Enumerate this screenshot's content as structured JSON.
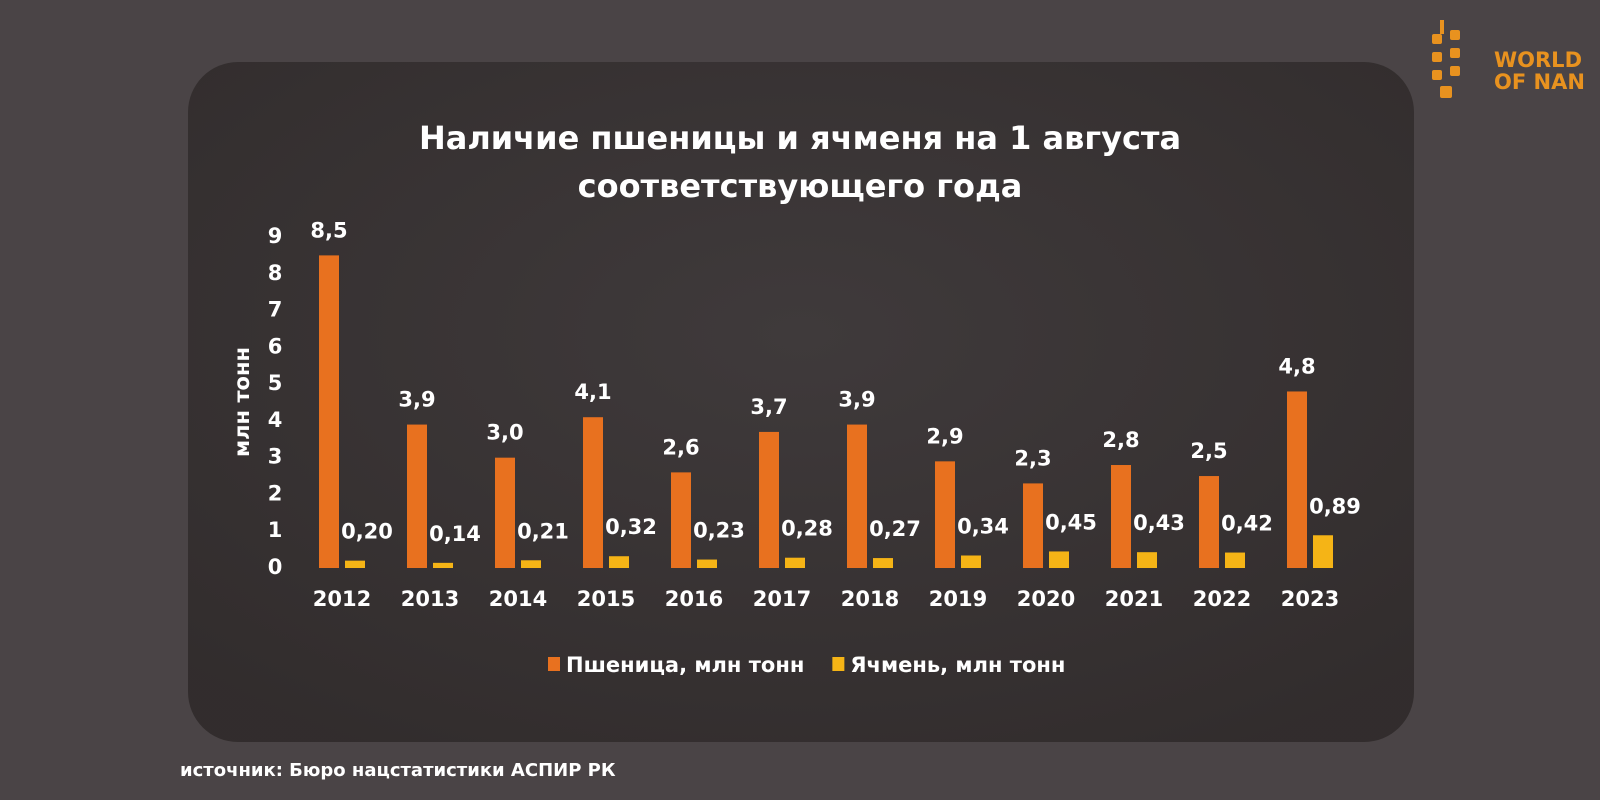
{
  "logo": {
    "lines": [
      "WORLD",
      "OF NAN"
    ]
  },
  "source": "источник: Бюро нацстатистики АСПИР РК",
  "chart_data": {
    "type": "bar",
    "title": [
      "Наличие пшеницы и ячменя на 1 августа",
      "соответствующего года"
    ],
    "y_label": "млн тонн",
    "categories": [
      "2012",
      "2013",
      "2014",
      "2015",
      "2016",
      "2017",
      "2018",
      "2019",
      "2020",
      "2021",
      "2022",
      "2023"
    ],
    "series": [
      {
        "name": "Пшеница, млн тонн",
        "color": "#e8711f",
        "values": [
          8.5,
          3.9,
          3.0,
          4.1,
          2.6,
          3.7,
          3.9,
          2.9,
          2.3,
          2.8,
          2.5,
          4.8
        ],
        "value_labels": [
          "8,5",
          "3,9",
          "3,0",
          "4,1",
          "2,6",
          "3,7",
          "3,9",
          "2,9",
          "2,3",
          "2,8",
          "2,5",
          "4,8"
        ]
      },
      {
        "name": "Ячмень, млн тонн",
        "color": "#f5b416",
        "values": [
          0.2,
          0.14,
          0.21,
          0.32,
          0.23,
          0.28,
          0.27,
          0.34,
          0.45,
          0.43,
          0.42,
          0.89
        ],
        "value_labels": [
          "0,20",
          "0,14",
          "0,21",
          "0,32",
          "0,23",
          "0,28",
          "0,27",
          "0,34",
          "0,45",
          "0,43",
          "0,42",
          "0,89"
        ]
      }
    ],
    "ylim": [
      0,
      9
    ],
    "yticks": [
      0,
      1,
      2,
      3,
      4,
      5,
      6,
      7,
      8,
      9
    ],
    "grid": false,
    "legend": "bottom"
  }
}
